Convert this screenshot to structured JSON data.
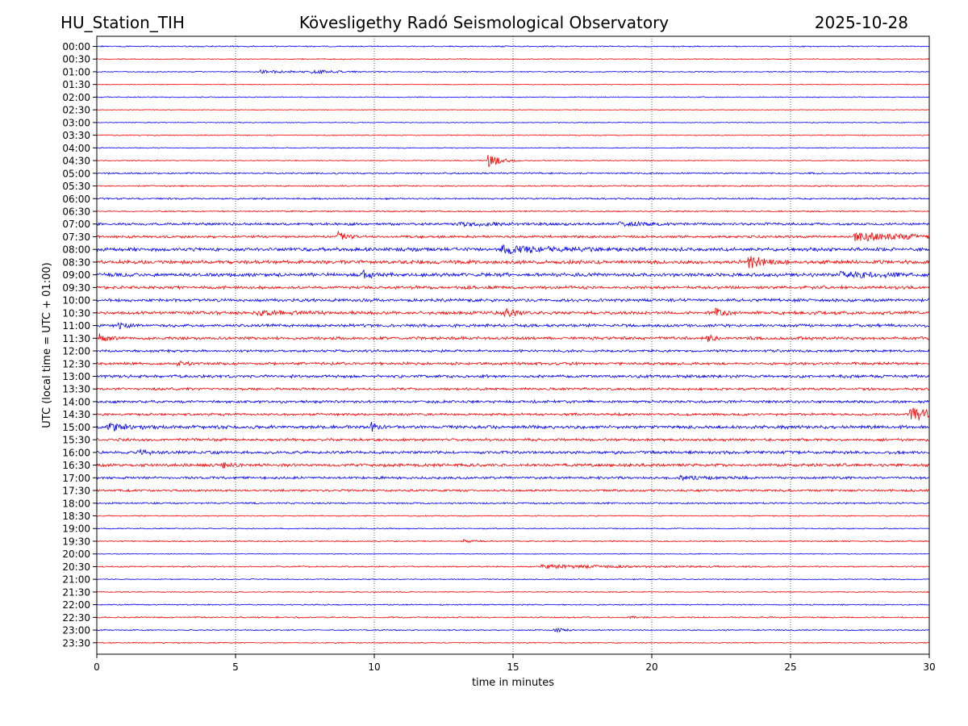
{
  "header": {
    "station": "HU_Station_TIH",
    "observatory": "Kövesligethy Radó Seismological Observatory",
    "date": "2025-10-28"
  },
  "chart_data": {
    "type": "line",
    "subtype": "helicorder",
    "title": "Kövesligethy Radó Seismological Observatory",
    "xlabel": "time in minutes",
    "ylabel": "UTC (local time = UTC + 01:00)",
    "xlim": [
      0,
      30
    ],
    "x_ticks": [
      "0",
      "5",
      "10",
      "15",
      "20",
      "25",
      "30"
    ],
    "x_tick_values": [
      0,
      5,
      10,
      15,
      20,
      25,
      30
    ],
    "grid": "vertical dotted at x ticks",
    "series_colors": [
      "#0000ff",
      "#ff0000"
    ],
    "rows": [
      {
        "label": "00:00",
        "noise": 0.45,
        "events": []
      },
      {
        "label": "00:30",
        "noise": 0.35,
        "events": []
      },
      {
        "label": "01:00",
        "noise": 0.4,
        "events": [
          {
            "t": 5.9,
            "amp": 1.5,
            "dur": 1.0
          },
          {
            "t": 7.7,
            "amp": 1.4,
            "dur": 1.0
          }
        ]
      },
      {
        "label": "01:30",
        "noise": 0.3,
        "events": []
      },
      {
        "label": "02:00",
        "noise": 0.35,
        "events": []
      },
      {
        "label": "02:30",
        "noise": 0.25,
        "events": []
      },
      {
        "label": "03:00",
        "noise": 0.3,
        "events": []
      },
      {
        "label": "03:30",
        "noise": 0.35,
        "events": []
      },
      {
        "label": "04:00",
        "noise": 0.35,
        "events": []
      },
      {
        "label": "04:30",
        "noise": 0.35,
        "events": [
          {
            "t": 14.1,
            "amp": 6,
            "dur": 0.4
          }
        ]
      },
      {
        "label": "05:00",
        "noise": 0.6,
        "events": []
      },
      {
        "label": "05:30",
        "noise": 0.5,
        "events": []
      },
      {
        "label": "06:00",
        "noise": 0.6,
        "events": []
      },
      {
        "label": "06:30",
        "noise": 0.5,
        "events": []
      },
      {
        "label": "07:00",
        "noise": 0.9,
        "events": [
          {
            "t": 13.0,
            "amp": 1.5,
            "dur": 1.5
          },
          {
            "t": 18.8,
            "amp": 1.4,
            "dur": 1.2
          }
        ]
      },
      {
        "label": "07:30",
        "noise": 0.9,
        "events": [
          {
            "t": 8.7,
            "amp": 4,
            "dur": 0.3
          },
          {
            "t": 27.3,
            "amp": 3.5,
            "dur": 2.0
          }
        ]
      },
      {
        "label": "08:00",
        "noise": 1.3,
        "events": [
          {
            "t": 14.6,
            "amp": 3.5,
            "dur": 1.8
          }
        ]
      },
      {
        "label": "08:30",
        "noise": 1.3,
        "events": [
          {
            "t": 23.5,
            "amp": 6.5,
            "dur": 0.5
          }
        ]
      },
      {
        "label": "09:00",
        "noise": 1.3,
        "events": [
          {
            "t": 9.6,
            "amp": 3,
            "dur": 0.3
          },
          {
            "t": 26.8,
            "amp": 2,
            "dur": 2.0
          }
        ]
      },
      {
        "label": "09:30",
        "noise": 1.1,
        "events": []
      },
      {
        "label": "10:00",
        "noise": 1.1,
        "events": []
      },
      {
        "label": "10:30",
        "noise": 1.2,
        "events": [
          {
            "t": 14.7,
            "amp": 4,
            "dur": 0.3
          },
          {
            "t": 22.3,
            "amp": 3,
            "dur": 0.4
          },
          {
            "t": 5.8,
            "amp": 2,
            "dur": 0.8
          }
        ]
      },
      {
        "label": "11:00",
        "noise": 1.1,
        "events": [
          {
            "t": 0.8,
            "amp": 3,
            "dur": 0.3
          }
        ]
      },
      {
        "label": "11:30",
        "noise": 1.1,
        "events": [
          {
            "t": 0.1,
            "amp": 3,
            "dur": 0.3
          },
          {
            "t": 22.0,
            "amp": 3,
            "dur": 0.2
          }
        ]
      },
      {
        "label": "12:00",
        "noise": 0.9,
        "events": []
      },
      {
        "label": "12:30",
        "noise": 1.0,
        "events": [
          {
            "t": 2.9,
            "amp": 2.5,
            "dur": 0.3
          }
        ]
      },
      {
        "label": "13:00",
        "noise": 1.1,
        "events": []
      },
      {
        "label": "13:30",
        "noise": 0.9,
        "events": []
      },
      {
        "label": "14:00",
        "noise": 1.0,
        "events": []
      },
      {
        "label": "14:30",
        "noise": 0.9,
        "events": [
          {
            "t": 29.3,
            "amp": 7,
            "dur": 0.8
          }
        ]
      },
      {
        "label": "15:00",
        "noise": 1.2,
        "events": [
          {
            "t": 0.4,
            "amp": 3.5,
            "dur": 0.6
          },
          {
            "t": 9.9,
            "amp": 4,
            "dur": 0.2
          }
        ]
      },
      {
        "label": "15:30",
        "noise": 1.0,
        "events": []
      },
      {
        "label": "16:00",
        "noise": 1.1,
        "events": [
          {
            "t": 1.5,
            "amp": 2,
            "dur": 0.4
          }
        ]
      },
      {
        "label": "16:30",
        "noise": 1.1,
        "events": [
          {
            "t": 4.5,
            "amp": 2,
            "dur": 0.3
          }
        ]
      },
      {
        "label": "17:00",
        "noise": 0.9,
        "events": [
          {
            "t": 21.0,
            "amp": 1.5,
            "dur": 1.0
          }
        ]
      },
      {
        "label": "17:30",
        "noise": 0.8,
        "events": []
      },
      {
        "label": "18:00",
        "noise": 0.6,
        "events": []
      },
      {
        "label": "18:30",
        "noise": 0.4,
        "events": []
      },
      {
        "label": "19:00",
        "noise": 0.4,
        "events": []
      },
      {
        "label": "19:30",
        "noise": 0.45,
        "events": [
          {
            "t": 13.2,
            "amp": 1.5,
            "dur": 0.3
          }
        ]
      },
      {
        "label": "20:00",
        "noise": 0.3,
        "events": []
      },
      {
        "label": "20:30",
        "noise": 0.5,
        "events": [
          {
            "t": 16.0,
            "amp": 1.5,
            "dur": 3.0
          }
        ]
      },
      {
        "label": "21:00",
        "noise": 0.4,
        "events": []
      },
      {
        "label": "21:30",
        "noise": 0.35,
        "events": []
      },
      {
        "label": "22:00",
        "noise": 0.45,
        "events": []
      },
      {
        "label": "22:30",
        "noise": 0.5,
        "events": [
          {
            "t": 19.2,
            "amp": 1.5,
            "dur": 0.3
          }
        ]
      },
      {
        "label": "23:00",
        "noise": 0.45,
        "events": [
          {
            "t": 16.5,
            "amp": 2.5,
            "dur": 0.3
          }
        ]
      },
      {
        "label": "23:30",
        "noise": 0.4,
        "events": []
      }
    ]
  }
}
